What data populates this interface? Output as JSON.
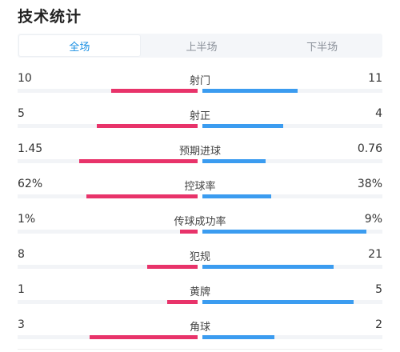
{
  "header": {
    "title": "技术统计"
  },
  "tabs": [
    {
      "label": "全场",
      "active": true
    },
    {
      "label": "上半场",
      "active": false
    },
    {
      "label": "下半场",
      "active": false
    }
  ],
  "colors": {
    "home": "#e8336a",
    "away": "#3b9cf0",
    "active_tab": "#1a8fe3"
  },
  "stats": [
    {
      "label": "射门",
      "home": "10",
      "away": "11",
      "home_share": 0.48,
      "away_share": 0.53
    },
    {
      "label": "射正",
      "home": "5",
      "away": "4",
      "home_share": 0.56,
      "away_share": 0.45
    },
    {
      "label": "预期进球",
      "home": "1.45",
      "away": "0.76",
      "home_share": 0.66,
      "away_share": 0.35
    },
    {
      "label": "控球率",
      "home": "62%",
      "away": "38%",
      "home_share": 0.62,
      "away_share": 0.38
    },
    {
      "label": "传球成功率",
      "home": "1%",
      "away": "9%",
      "home_share": 0.1,
      "away_share": 0.91
    },
    {
      "label": "犯规",
      "home": "8",
      "away": "21",
      "home_share": 0.28,
      "away_share": 0.73
    },
    {
      "label": "黄牌",
      "home": "1",
      "away": "5",
      "home_share": 0.17,
      "away_share": 0.84
    },
    {
      "label": "角球",
      "home": "3",
      "away": "2",
      "home_share": 0.6,
      "away_share": 0.4
    }
  ]
}
